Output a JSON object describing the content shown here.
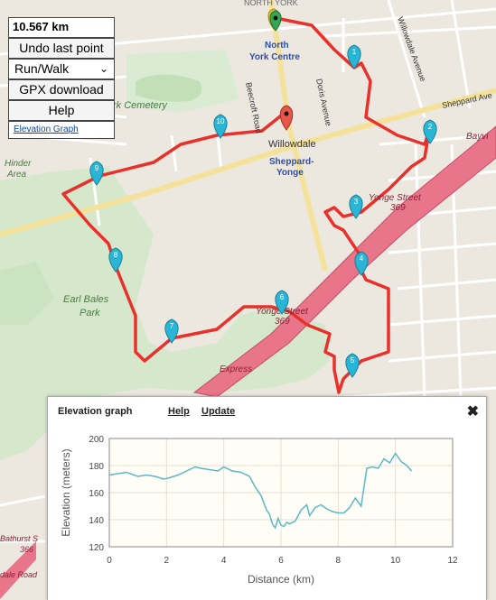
{
  "controls": {
    "distance": "10.567 km",
    "undo_label": "Undo last point",
    "mode_value": "Run/Walk",
    "gpx_label": "GPX download",
    "help_label": "Help",
    "elevation_link": "Elevation Graph"
  },
  "map": {
    "labels": {
      "north_york_centre": "North\nYork Centre",
      "willowdale": "Willowdale",
      "sheppard_yonge": "Sheppard-\nYonge",
      "cemetery": "rk Cemetery",
      "hinder_area": "Hinder\nArea",
      "earl_bales_park": "Earl Bales\nPark",
      "yonge_street_369_top": "Yonge Street\n369",
      "yonge_street_369_bottom": "Yonge Street\n369",
      "willowdale_avenue": "Willowdale Avenue",
      "sheppard_avenue": "Sheppard Ave",
      "beecroft_road": "Beecroft Road",
      "doris_avenue": "Doris Avenue",
      "express": "Express",
      "bayview": "Bayvi",
      "bathurst": "Bathurst S\n366",
      "dale_road": "dale Road",
      "north_york_top": "NORTH YORK"
    },
    "markers": [
      "1",
      "2",
      "3",
      "4",
      "5",
      "6",
      "7",
      "8",
      "9",
      "10"
    ],
    "colors": {
      "route": "#e8312b",
      "marker": "#29b6d6",
      "start": "#35a853",
      "end": "#e8564a",
      "highway": "#e8758a",
      "park": "#cfe6c4"
    }
  },
  "elevation": {
    "title": "Elevation graph",
    "help": "Help",
    "update": "Update",
    "close_icon": "close-icon"
  },
  "chart_data": {
    "type": "line",
    "xlabel": "Distance (km)",
    "ylabel": "Elevation (meters)",
    "xlim": [
      0,
      12
    ],
    "ylim": [
      120,
      200
    ],
    "xticks": [
      0,
      2,
      4,
      6,
      8,
      10,
      12
    ],
    "yticks": [
      120,
      140,
      160,
      180,
      200
    ],
    "grid": true,
    "color": "#5bb8c9",
    "series": [
      {
        "x": [
          0,
          0.3,
          0.6,
          1.0,
          1.3,
          1.6,
          1.9,
          2.1,
          2.4,
          2.7,
          3.0,
          3.2,
          3.5,
          3.8,
          4.0,
          4.3,
          4.6,
          4.9,
          5.1,
          5.3,
          5.5,
          5.6,
          5.7,
          5.8,
          5.9,
          6.0,
          6.1,
          6.2,
          6.3,
          6.5,
          6.7,
          6.9,
          7.0,
          7.2,
          7.4,
          7.6,
          7.8,
          8.0,
          8.2,
          8.4,
          8.6,
          8.8,
          9.0,
          9.2,
          9.4,
          9.6,
          9.8,
          10.0,
          10.2,
          10.4,
          10.567
        ],
        "y": [
          173,
          174,
          175,
          172,
          173,
          172,
          170,
          171,
          173,
          176,
          179,
          178,
          177,
          176,
          179,
          176,
          175,
          172,
          164,
          158,
          147,
          144,
          137,
          134,
          141,
          136,
          135,
          138,
          137,
          139,
          147,
          151,
          143,
          149,
          151,
          148,
          146,
          145,
          145,
          149,
          156,
          150,
          178,
          179,
          178,
          185,
          182,
          189,
          183,
          180,
          176
        ]
      }
    ]
  }
}
